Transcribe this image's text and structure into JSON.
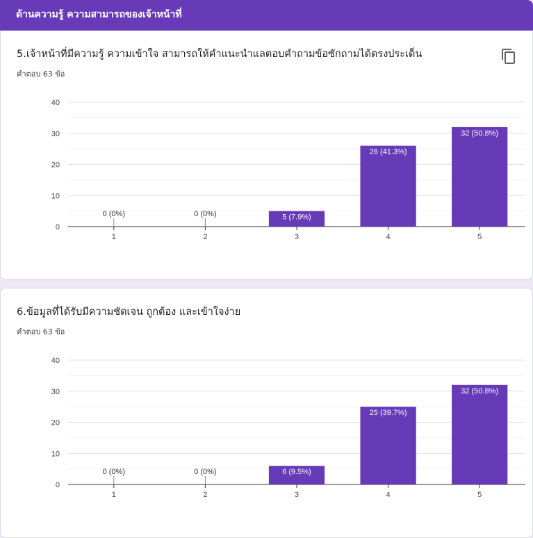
{
  "section": {
    "title": "ด้านความรู้ ความสามารถของเจ้าหน้าที่"
  },
  "questions": [
    {
      "title": "5.เจ้าหน้าที่มีความรู้ ความเข้าใจ สามารถให้คำแนะนำแลตอบคำถามข้อซักถามได้ตรงประเด็น",
      "count": "คำตอบ 63 ข้อ"
    },
    {
      "title": "6.ข้อมูลที่ได้รับมีความชัดเจน ถูกต้อง และเข้าใจง่าย",
      "count": "คำตอบ 63 ข้อ"
    }
  ],
  "icons": {
    "copy": "copy-icon"
  },
  "colors": {
    "header": "#673ab7",
    "bar": "#673ab7"
  },
  "chart_data": [
    {
      "type": "bar",
      "categories": [
        "1",
        "2",
        "3",
        "4",
        "5"
      ],
      "values": [
        0,
        0,
        5,
        26,
        32
      ],
      "data_labels": [
        "0 (0%)",
        "0 (0%)",
        "5 (7.9%)",
        "26 (41.3%)",
        "32 (50.8%)"
      ],
      "ylim": [
        0,
        40
      ],
      "yticks": [
        0,
        10,
        20,
        30,
        40
      ],
      "grid": true
    },
    {
      "type": "bar",
      "categories": [
        "1",
        "2",
        "3",
        "4",
        "5"
      ],
      "values": [
        0,
        0,
        6,
        25,
        32
      ],
      "data_labels": [
        "0 (0%)",
        "0 (0%)",
        "6 (9.5%)",
        "25 (39.7%)",
        "32 (50.8%)"
      ],
      "ylim": [
        0,
        40
      ],
      "yticks": [
        0,
        10,
        20,
        30,
        40
      ],
      "grid": true
    }
  ]
}
